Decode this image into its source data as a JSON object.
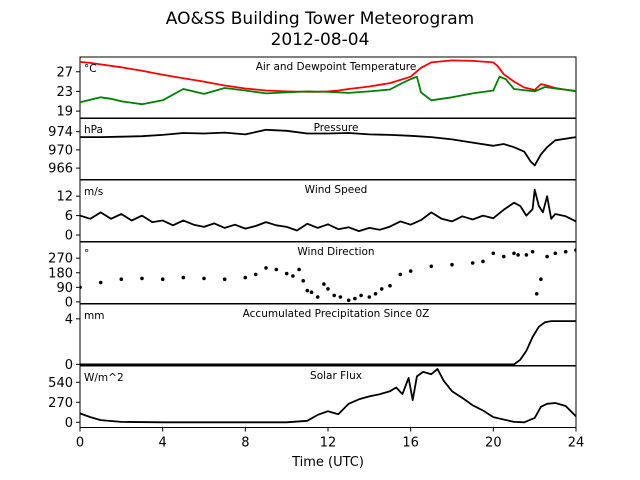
{
  "title_line1": "AO&SS Building Tower Meteorogram",
  "title_line2": "2012-08-04",
  "colors": {
    "temperature": "#ff0000",
    "dewpoint": "#008000",
    "black": "#000000"
  },
  "chart_data": [
    {
      "type": "line",
      "title": "Air and Dewpoint Temperature",
      "unit": "°C",
      "ylim": [
        17.5,
        30
      ],
      "yticks": [
        19,
        23,
        27
      ],
      "series": [
        {
          "color": "red",
          "x": [
            0,
            0.5,
            1,
            2,
            3,
            4,
            5,
            6,
            6.5,
            7,
            7.5,
            8,
            8.5,
            9,
            10,
            11,
            11.5,
            12,
            12.5,
            13,
            14,
            15,
            16,
            16.5,
            17,
            18,
            19,
            20,
            20.2,
            20.5,
            21,
            21.5,
            22,
            22.3,
            22.5,
            23,
            24
          ],
          "y": [
            29,
            28.8,
            28.5,
            27.9,
            27.2,
            26.4,
            25.7,
            25,
            24.6,
            24.2,
            23.9,
            23.6,
            23.4,
            23.2,
            23,
            22.9,
            22.9,
            23,
            23.2,
            23.5,
            24,
            24.7,
            26,
            27.8,
            28.9,
            29.3,
            29.2,
            28.9,
            28.2,
            26.5,
            25,
            23.8,
            23.3,
            24.5,
            24.3,
            23.7,
            23
          ]
        },
        {
          "color": "green",
          "x": [
            0,
            0.5,
            1,
            1.5,
            2,
            3,
            4,
            5,
            6,
            7,
            8,
            9,
            10,
            11,
            12,
            13,
            14,
            15,
            15.5,
            16,
            16.3,
            16.5,
            17,
            18,
            19,
            20,
            20.3,
            20.6,
            21,
            22,
            22.5,
            23,
            24
          ],
          "y": [
            20.8,
            21.3,
            21.8,
            21.5,
            21,
            20.4,
            21.2,
            23.5,
            22.5,
            23.7,
            23.2,
            22.6,
            22.8,
            23,
            22.9,
            22.7,
            23,
            23.4,
            24.5,
            25.5,
            26,
            22.8,
            21.2,
            21.8,
            22.6,
            23.2,
            26,
            25.5,
            23.5,
            23,
            23.9,
            23.6,
            23.1
          ]
        }
      ]
    },
    {
      "type": "line",
      "title": "Pressure",
      "unit": "hPa",
      "ylim": [
        963.5,
        977
      ],
      "yticks": [
        966,
        970,
        974
      ],
      "series": [
        {
          "color": "black",
          "x": [
            0,
            1,
            2,
            3,
            4,
            5,
            6,
            7,
            8,
            9,
            10,
            11,
            12,
            13,
            14,
            15,
            16,
            17,
            18,
            19,
            20,
            20.5,
            21,
            21.5,
            21.8,
            22,
            22.3,
            22.6,
            23,
            24
          ],
          "y": [
            972.8,
            972.8,
            972.9,
            973,
            973.3,
            973.7,
            973.6,
            973.8,
            973.4,
            974.4,
            974.2,
            973.6,
            973.6,
            973.7,
            973.4,
            973.3,
            973.1,
            972.8,
            972.3,
            971.6,
            970.9,
            971.3,
            970.6,
            969.6,
            967.5,
            966.6,
            969,
            970.6,
            972.1,
            972.8
          ]
        }
      ]
    },
    {
      "type": "line",
      "title": "Wind Speed",
      "unit": "m/s",
      "ylim": [
        -2,
        17
      ],
      "yticks": [
        0,
        6,
        12
      ],
      "series": [
        {
          "color": "black",
          "x": [
            0,
            0.5,
            1,
            1.5,
            2,
            2.5,
            3,
            3.5,
            4,
            4.5,
            5,
            5.5,
            6,
            6.5,
            7,
            7.5,
            8,
            8.5,
            9,
            9.5,
            10,
            10.5,
            11,
            11.5,
            12,
            12.5,
            13,
            13.5,
            14,
            14.5,
            15,
            15.5,
            16,
            16.5,
            17,
            17.5,
            18,
            18.5,
            19,
            19.5,
            20,
            20.5,
            21,
            21.3,
            21.6,
            21.9,
            22,
            22.2,
            22.4,
            22.6,
            22.8,
            23,
            23.5,
            24
          ],
          "y": [
            6,
            5,
            7,
            5,
            6.5,
            4.5,
            6,
            4,
            4.5,
            3,
            4.5,
            3.2,
            2.5,
            3.6,
            2.2,
            3.2,
            2,
            2.8,
            4,
            3,
            2.5,
            1.4,
            3.5,
            2.2,
            3.3,
            1.8,
            2.4,
            1.2,
            2.2,
            1.6,
            2.6,
            4.2,
            3.2,
            4.6,
            7,
            5,
            4.2,
            5.8,
            4.8,
            6,
            5.2,
            7.8,
            10,
            9,
            6,
            8,
            14,
            9,
            7,
            12,
            5,
            6.5,
            5.8,
            4.2
          ]
        }
      ]
    },
    {
      "type": "scatter",
      "title": "Wind Direction",
      "unit": "°",
      "ylim": [
        -10,
        370
      ],
      "yticks": [
        0,
        90,
        180,
        270
      ],
      "series": [
        {
          "color": "black",
          "x": [
            0,
            1,
            2,
            3,
            4,
            5,
            6,
            7,
            8,
            8.5,
            9,
            9.5,
            10,
            10.3,
            10.6,
            10.8,
            11,
            11.2,
            11.5,
            11.8,
            12,
            12.3,
            12.6,
            13,
            13.3,
            13.6,
            14,
            14.3,
            14.6,
            15,
            15.5,
            16,
            17,
            18,
            19,
            19.5,
            20,
            20.5,
            21,
            21.2,
            21.6,
            21.9,
            22.1,
            22.3,
            22.6,
            23,
            23.5,
            24
          ],
          "y": [
            90,
            120,
            140,
            145,
            140,
            150,
            145,
            140,
            150,
            170,
            210,
            200,
            175,
            160,
            200,
            130,
            70,
            60,
            30,
            110,
            80,
            40,
            30,
            10,
            20,
            40,
            30,
            50,
            80,
            100,
            170,
            190,
            220,
            230,
            240,
            250,
            300,
            280,
            300,
            290,
            290,
            310,
            50,
            140,
            280,
            300,
            310,
            320
          ]
        }
      ]
    },
    {
      "type": "line",
      "title": "Accumulated Precipitation Since 0Z",
      "unit": "mm",
      "ylim": [
        -0.1,
        5.3
      ],
      "yticks": [
        0,
        4
      ],
      "series": [
        {
          "color": "black",
          "x": [
            0,
            21,
            21.3,
            21.6,
            21.9,
            22.2,
            22.5,
            22.8,
            23,
            24
          ],
          "y": [
            0,
            0,
            0.4,
            1.2,
            2.4,
            3.3,
            3.7,
            3.8,
            3.8,
            3.8
          ]
        }
      ]
    },
    {
      "type": "line",
      "title": "Solar Flux",
      "unit": "W/m^2",
      "ylim": [
        -70,
        760
      ],
      "yticks": [
        0,
        270,
        540
      ],
      "series": [
        {
          "color": "black",
          "x": [
            0,
            0.5,
            1,
            2,
            4,
            6,
            8,
            10,
            11,
            11.5,
            12,
            12.5,
            13,
            13.5,
            14,
            14.5,
            15,
            15.3,
            15.6,
            15.9,
            16.1,
            16.3,
            16.6,
            17,
            17.3,
            17.6,
            18,
            18.5,
            19,
            19.5,
            20,
            21,
            21.5,
            22,
            22.3,
            22.6,
            23,
            23.5,
            24
          ],
          "y": [
            120,
            70,
            30,
            5,
            0,
            0,
            0,
            0,
            20,
            100,
            150,
            110,
            250,
            310,
            350,
            380,
            420,
            470,
            380,
            600,
            300,
            620,
            680,
            650,
            720,
            560,
            420,
            330,
            230,
            160,
            70,
            5,
            0,
            60,
            210,
            250,
            260,
            220,
            80
          ]
        }
      ]
    }
  ],
  "x_axis": {
    "xlim": [
      0,
      24
    ],
    "ticks": [
      "0",
      "4",
      "8",
      "12",
      "16",
      "20",
      "24"
    ],
    "tick_values": [
      0,
      4,
      8,
      12,
      16,
      20,
      24
    ],
    "label": "Time (UTC)"
  }
}
